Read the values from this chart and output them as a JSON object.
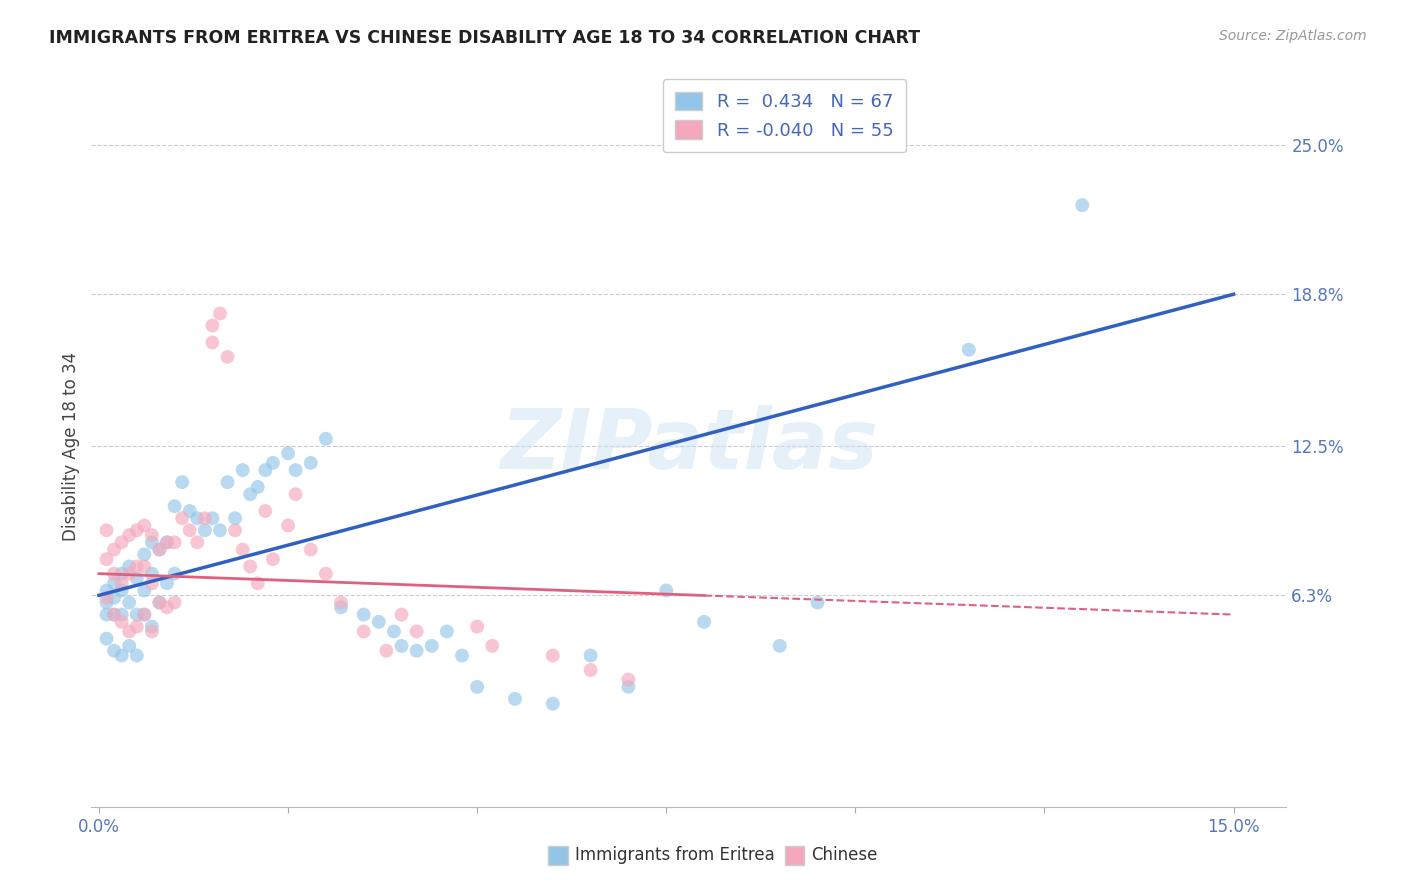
{
  "title": "IMMIGRANTS FROM ERITREA VS CHINESE DISABILITY AGE 18 TO 34 CORRELATION CHART",
  "source": "Source: ZipAtlas.com",
  "ylabel_label": "Disability Age 18 to 34",
  "xlim": [
    -0.001,
    0.157
  ],
  "ylim": [
    -0.025,
    0.275
  ],
  "xticks": [
    0.0,
    0.025,
    0.05,
    0.075,
    0.1,
    0.125,
    0.15
  ],
  "xticklabels": [
    "0.0%",
    "",
    "",
    "",
    "",
    "",
    "15.0%"
  ],
  "ytick_positions": [
    0.063,
    0.125,
    0.188,
    0.25
  ],
  "yticklabels": [
    "6.3%",
    "12.5%",
    "18.8%",
    "25.0%"
  ],
  "blue_R": "0.434",
  "blue_N": "67",
  "pink_R": "-0.040",
  "pink_N": "55",
  "blue_line_x": [
    0.0,
    0.15
  ],
  "blue_line_y": [
    0.063,
    0.188
  ],
  "pink_line_x": [
    0.0,
    0.15
  ],
  "pink_line_y": [
    0.072,
    0.055
  ],
  "blue_scatter_x": [
    0.001,
    0.001,
    0.001,
    0.001,
    0.002,
    0.002,
    0.002,
    0.002,
    0.003,
    0.003,
    0.003,
    0.003,
    0.004,
    0.004,
    0.004,
    0.005,
    0.005,
    0.005,
    0.006,
    0.006,
    0.006,
    0.007,
    0.007,
    0.007,
    0.008,
    0.008,
    0.009,
    0.009,
    0.01,
    0.01,
    0.011,
    0.012,
    0.013,
    0.014,
    0.015,
    0.016,
    0.017,
    0.018,
    0.019,
    0.02,
    0.021,
    0.022,
    0.023,
    0.025,
    0.026,
    0.028,
    0.03,
    0.032,
    0.035,
    0.037,
    0.039,
    0.04,
    0.042,
    0.044,
    0.046,
    0.048,
    0.05,
    0.055,
    0.06,
    0.065,
    0.07,
    0.075,
    0.08,
    0.09,
    0.095,
    0.115,
    0.13
  ],
  "blue_scatter_y": [
    0.065,
    0.06,
    0.055,
    0.045,
    0.068,
    0.062,
    0.055,
    0.04,
    0.072,
    0.065,
    0.055,
    0.038,
    0.075,
    0.06,
    0.042,
    0.07,
    0.055,
    0.038,
    0.08,
    0.065,
    0.055,
    0.085,
    0.072,
    0.05,
    0.082,
    0.06,
    0.085,
    0.068,
    0.1,
    0.072,
    0.11,
    0.098,
    0.095,
    0.09,
    0.095,
    0.09,
    0.11,
    0.095,
    0.115,
    0.105,
    0.108,
    0.115,
    0.118,
    0.122,
    0.115,
    0.118,
    0.128,
    0.058,
    0.055,
    0.052,
    0.048,
    0.042,
    0.04,
    0.042,
    0.048,
    0.038,
    0.025,
    0.02,
    0.018,
    0.038,
    0.025,
    0.065,
    0.052,
    0.042,
    0.06,
    0.165,
    0.225
  ],
  "pink_scatter_x": [
    0.001,
    0.001,
    0.001,
    0.002,
    0.002,
    0.002,
    0.003,
    0.003,
    0.003,
    0.004,
    0.004,
    0.004,
    0.005,
    0.005,
    0.005,
    0.006,
    0.006,
    0.006,
    0.007,
    0.007,
    0.007,
    0.008,
    0.008,
    0.009,
    0.009,
    0.01,
    0.01,
    0.011,
    0.012,
    0.013,
    0.014,
    0.015,
    0.015,
    0.016,
    0.017,
    0.018,
    0.019,
    0.02,
    0.021,
    0.022,
    0.023,
    0.025,
    0.026,
    0.028,
    0.03,
    0.032,
    0.035,
    0.038,
    0.04,
    0.042,
    0.05,
    0.052,
    0.06,
    0.065,
    0.07
  ],
  "pink_scatter_y": [
    0.09,
    0.078,
    0.062,
    0.082,
    0.072,
    0.055,
    0.085,
    0.068,
    0.052,
    0.088,
    0.072,
    0.048,
    0.09,
    0.075,
    0.05,
    0.092,
    0.075,
    0.055,
    0.088,
    0.068,
    0.048,
    0.082,
    0.06,
    0.085,
    0.058,
    0.085,
    0.06,
    0.095,
    0.09,
    0.085,
    0.095,
    0.175,
    0.168,
    0.18,
    0.162,
    0.09,
    0.082,
    0.075,
    0.068,
    0.098,
    0.078,
    0.092,
    0.105,
    0.082,
    0.072,
    0.06,
    0.048,
    0.04,
    0.055,
    0.048,
    0.05,
    0.042,
    0.038,
    0.032,
    0.028
  ],
  "blue_color": "#92c5e8",
  "pink_color": "#f5a8bc",
  "blue_line_color": "#3060c0",
  "pink_line_color": "#e06080",
  "watermark": "ZIPatlas",
  "scatter_alpha": 0.65,
  "scatter_size": 100,
  "background_color": "#ffffff"
}
